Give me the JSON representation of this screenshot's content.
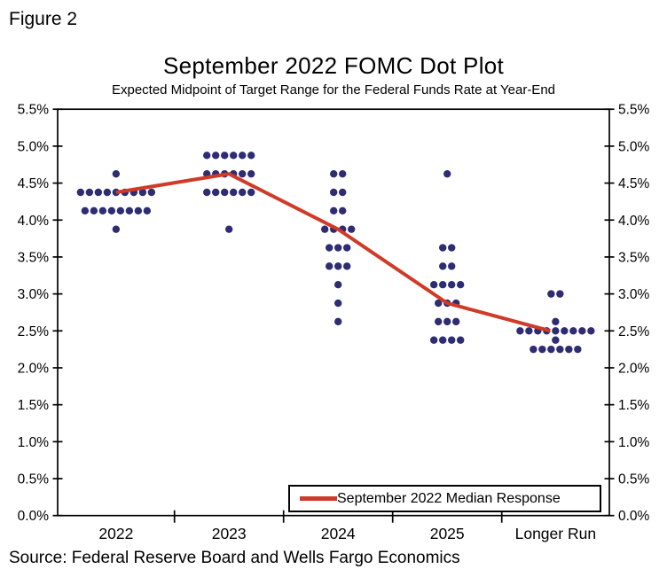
{
  "figure_label": "Figure 2",
  "source_note": "Source: Federal Reserve Board and Wells Fargo Economics",
  "chart_data": {
    "type": "scatter",
    "title": "September 2022 FOMC Dot Plot",
    "subtitle": "Expected Midpoint of Target Range for the Federal Funds Rate at Year-End",
    "categories": [
      "2022",
      "2023",
      "2024",
      "2025",
      "Longer Run"
    ],
    "ylim": [
      0.0,
      5.5
    ],
    "ytick_step": 0.5,
    "ytick_labels": [
      "0.0%",
      "0.5%",
      "1.0%",
      "1.5%",
      "2.0%",
      "2.5%",
      "3.0%",
      "3.5%",
      "4.0%",
      "4.5%",
      "5.0%",
      "5.5%"
    ],
    "y_axis_sides": "both",
    "grid": false,
    "legend_position": "inside-bottom-right",
    "dot_distribution": [
      {
        "category": "2022",
        "rows": [
          {
            "rate": 4.625,
            "count": 1
          },
          {
            "rate": 4.375,
            "count": 9
          },
          {
            "rate": 4.125,
            "count": 8
          },
          {
            "rate": 3.875,
            "count": 1
          }
        ]
      },
      {
        "category": "2023",
        "rows": [
          {
            "rate": 4.875,
            "count": 6
          },
          {
            "rate": 4.625,
            "count": 6
          },
          {
            "rate": 4.375,
            "count": 6
          },
          {
            "rate": 3.875,
            "count": 1
          }
        ]
      },
      {
        "category": "2024",
        "rows": [
          {
            "rate": 4.625,
            "count": 2
          },
          {
            "rate": 4.375,
            "count": 2
          },
          {
            "rate": 4.125,
            "count": 2
          },
          {
            "rate": 3.875,
            "count": 4
          },
          {
            "rate": 3.625,
            "count": 3
          },
          {
            "rate": 3.375,
            "count": 3
          },
          {
            "rate": 3.125,
            "count": 1
          },
          {
            "rate": 2.875,
            "count": 1
          },
          {
            "rate": 2.625,
            "count": 1
          }
        ]
      },
      {
        "category": "2025",
        "rows": [
          {
            "rate": 4.625,
            "count": 1
          },
          {
            "rate": 3.625,
            "count": 2
          },
          {
            "rate": 3.375,
            "count": 2
          },
          {
            "rate": 3.125,
            "count": 4
          },
          {
            "rate": 2.875,
            "count": 3
          },
          {
            "rate": 2.625,
            "count": 3
          },
          {
            "rate": 2.375,
            "count": 4
          }
        ]
      },
      {
        "category": "Longer Run",
        "rows": [
          {
            "rate": 3.0,
            "count": 2
          },
          {
            "rate": 2.625,
            "count": 1
          },
          {
            "rate": 2.5,
            "count": 9
          },
          {
            "rate": 2.375,
            "count": 1
          },
          {
            "rate": 2.25,
            "count": 6
          }
        ]
      }
    ],
    "median_series": {
      "label": "September 2022 Median Response",
      "values": [
        4.375,
        4.625,
        3.875,
        2.875,
        2.5
      ]
    },
    "colors": {
      "dot": "#2e2c72",
      "median_line": "#cf3b28",
      "axis": "#000000",
      "text": "#000000",
      "background": "#ffffff"
    }
  }
}
